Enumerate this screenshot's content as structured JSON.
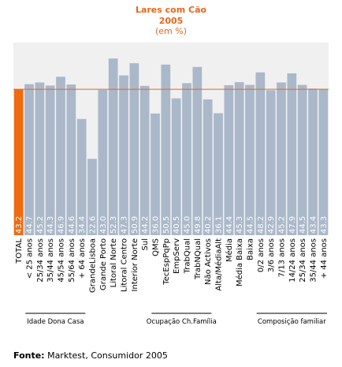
{
  "title": "Lares com Cão",
  "subtitle": "2005",
  "unit": "(em %)",
  "source_label": "Fonte:",
  "source_text": "Marktest, Consumidor 2005",
  "colors": {
    "title": "#e8661a",
    "highlight_bar": "#f06a0f",
    "bar": "#aab8ca",
    "reference_line": "#e8661a",
    "plot_background": "#f0f0f0",
    "value_label": "#ffffff"
  },
  "chart_data": {
    "type": "bar",
    "categories": [
      "TOTAL",
      "< 25 anos",
      "25/34 anos",
      "35/44 anos",
      "45/54 anos",
      "55/64 anos",
      "+ 64 anos",
      "GrandeLisboa",
      "Grande Porto",
      "Litoral Norte",
      "Litoral Centro",
      "Interior Norte",
      "Sul",
      "QMS",
      "TecEspPqPp",
      "EmpServ",
      "TrabQual",
      "TrabNQual",
      "Não Activos",
      "Alta/MédiaAlt",
      "Média",
      "Média Baixa",
      "Baixa",
      "0/2 anos",
      "3/6 anos",
      "7/13 anos",
      "14/24 anos",
      "25/34 anos",
      "35/44 anos",
      "+ 44 anos"
    ],
    "values": [
      43.2,
      44.7,
      45.2,
      44.3,
      46.9,
      44.6,
      34.4,
      22.6,
      43.0,
      52.3,
      47.3,
      50.9,
      44.2,
      36.0,
      50.5,
      40.5,
      45.0,
      49.8,
      40.2,
      36.1,
      44.4,
      45.3,
      44.5,
      48.2,
      42.9,
      45.2,
      47.9,
      44.5,
      43.4,
      43.3
    ],
    "value_labels": [
      "43.2",
      "44.7",
      "45.2",
      "44.3",
      "46.9",
      "44.6",
      "34.4",
      "22.6",
      "43.0",
      "52.3",
      "47.3",
      "50.9",
      "44.2",
      "36.0",
      "50.5",
      "40.5",
      "45.0",
      "49.8",
      "40.2",
      "36.1",
      "44.4",
      "45.3",
      "44.5",
      "48.2",
      "42.9",
      "45.2",
      "47.9",
      "44.5",
      "43.4",
      "43.3"
    ],
    "highlight_index": 0,
    "reference_value": 43.2,
    "ylim": [
      0,
      57
    ],
    "grid": false,
    "groups": [
      {
        "label": "Idade Dona Casa",
        "from": 1,
        "to": 6
      },
      {
        "label": "Ocupação Ch.Família",
        "from": 13,
        "to": 18
      },
      {
        "label": "Composição familiar",
        "from": 23,
        "to": 29
      }
    ]
  }
}
